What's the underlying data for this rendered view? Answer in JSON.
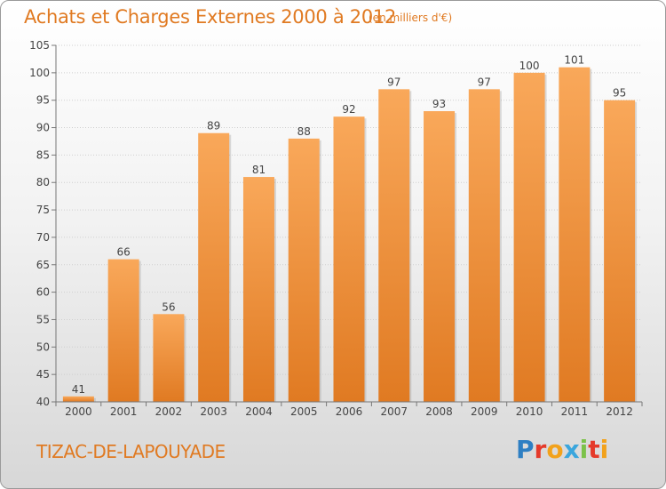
{
  "header": {
    "title": "Achats et Charges Externes 2000 à 2012",
    "unit": "(en milliers d'€)"
  },
  "footer": {
    "place": "TIZAC-DE-LAPOUYADE",
    "logo_letters": [
      {
        "ch": "P",
        "color": "#2e7fc3"
      },
      {
        "ch": "r",
        "color": "#e53a2a"
      },
      {
        "ch": "o",
        "color": "#f2a21b"
      },
      {
        "ch": "x",
        "color": "#3aa6dd"
      },
      {
        "ch": "i",
        "color": "#7cc24a"
      },
      {
        "ch": "t",
        "color": "#e53a2a"
      },
      {
        "ch": "i",
        "color": "#f2a21b"
      }
    ]
  },
  "colors": {
    "bar_light": "#f9a85a",
    "bar_dark": "#e07a22",
    "accent": "#e07a22"
  },
  "chart_data": {
    "type": "bar",
    "categories": [
      "2000",
      "2001",
      "2002",
      "2003",
      "2004",
      "2005",
      "2006",
      "2007",
      "2008",
      "2009",
      "2010",
      "2011",
      "2012"
    ],
    "values": [
      41,
      66,
      56,
      89,
      81,
      88,
      92,
      97,
      93,
      97,
      100,
      101,
      95
    ],
    "yticks": [
      40,
      45,
      50,
      55,
      60,
      65,
      70,
      75,
      80,
      85,
      90,
      95,
      100,
      105
    ],
    "ylim": [
      40,
      105
    ],
    "grid": true,
    "data_labels": true
  }
}
